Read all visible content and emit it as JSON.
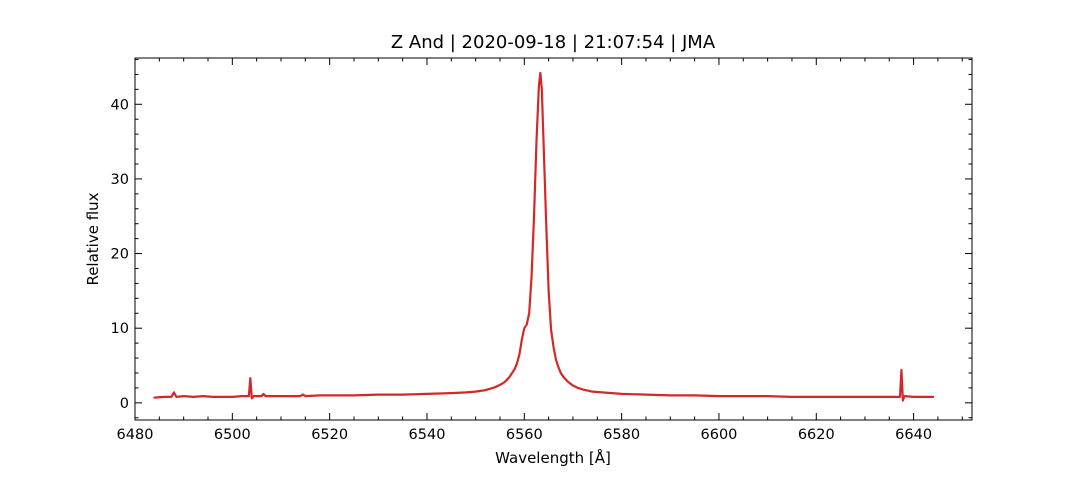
{
  "chart_data": {
    "type": "line",
    "title": "Z And | 2020-09-18 | 21:07:54 | JMA",
    "xlabel": "Wavelength [Å]",
    "ylabel": "Relative flux",
    "xlim": [
      6480,
      6652
    ],
    "ylim": [
      -2.3,
      46.2
    ],
    "xticks": [
      6480,
      6500,
      6520,
      6540,
      6560,
      6580,
      6600,
      6620,
      6640
    ],
    "yticks": [
      0,
      10,
      20,
      30,
      40
    ],
    "x_minor_step": 5,
    "y_minor_step": 2,
    "grid": false,
    "colors": {
      "line": "#d62728"
    },
    "series": [
      {
        "x": [
          6484,
          6486,
          6487.5,
          6488,
          6488.5,
          6490,
          6492,
          6494,
          6496,
          6498,
          6500,
          6502,
          6503.4,
          6503.7,
          6504.0,
          6504.4,
          6506,
          6506.4,
          6506.8,
          6508,
          6510,
          6512,
          6514,
          6514.5,
          6515,
          6518,
          6520,
          6525,
          6530,
          6535,
          6540,
          6545,
          6548,
          6550,
          6552,
          6554,
          6555,
          6556,
          6557,
          6558,
          6558.5,
          6559,
          6559.5,
          6560,
          6560.5,
          6561,
          6561.5,
          6562,
          6562.5,
          6563.0,
          6563.3,
          6563.6,
          6564,
          6564.5,
          6565,
          6565.5,
          6566,
          6566.5,
          6567,
          6567.5,
          6568,
          6569,
          6570,
          6571,
          6572,
          6574,
          6576,
          6578,
          6580,
          6585,
          6590,
          6595,
          6600,
          6605,
          6610,
          6615,
          6620,
          6625,
          6630,
          6635,
          6637.2,
          6637.5,
          6637.8,
          6638.1,
          6640,
          6642,
          6644
        ],
        "y": [
          0.7,
          0.8,
          0.8,
          1.4,
          0.8,
          0.9,
          0.8,
          0.9,
          0.8,
          0.8,
          0.8,
          0.9,
          0.9,
          3.3,
          0.6,
          0.9,
          0.9,
          1.2,
          0.9,
          0.9,
          0.9,
          0.9,
          0.9,
          1.1,
          0.9,
          1.0,
          1.0,
          1.0,
          1.1,
          1.1,
          1.2,
          1.3,
          1.4,
          1.5,
          1.7,
          2.1,
          2.4,
          2.8,
          3.5,
          4.5,
          5.3,
          6.5,
          8.5,
          10.0,
          10.5,
          12.0,
          17.0,
          25.0,
          35.0,
          42.5,
          44.2,
          42.0,
          34.0,
          24.0,
          15.0,
          9.8,
          7.5,
          5.8,
          4.8,
          4.0,
          3.5,
          2.8,
          2.3,
          2.0,
          1.8,
          1.5,
          1.4,
          1.3,
          1.2,
          1.1,
          1.0,
          1.0,
          0.9,
          0.9,
          0.9,
          0.8,
          0.8,
          0.8,
          0.8,
          0.8,
          0.8,
          4.4,
          0.3,
          0.9,
          0.8,
          0.8,
          0.8
        ]
      }
    ]
  }
}
